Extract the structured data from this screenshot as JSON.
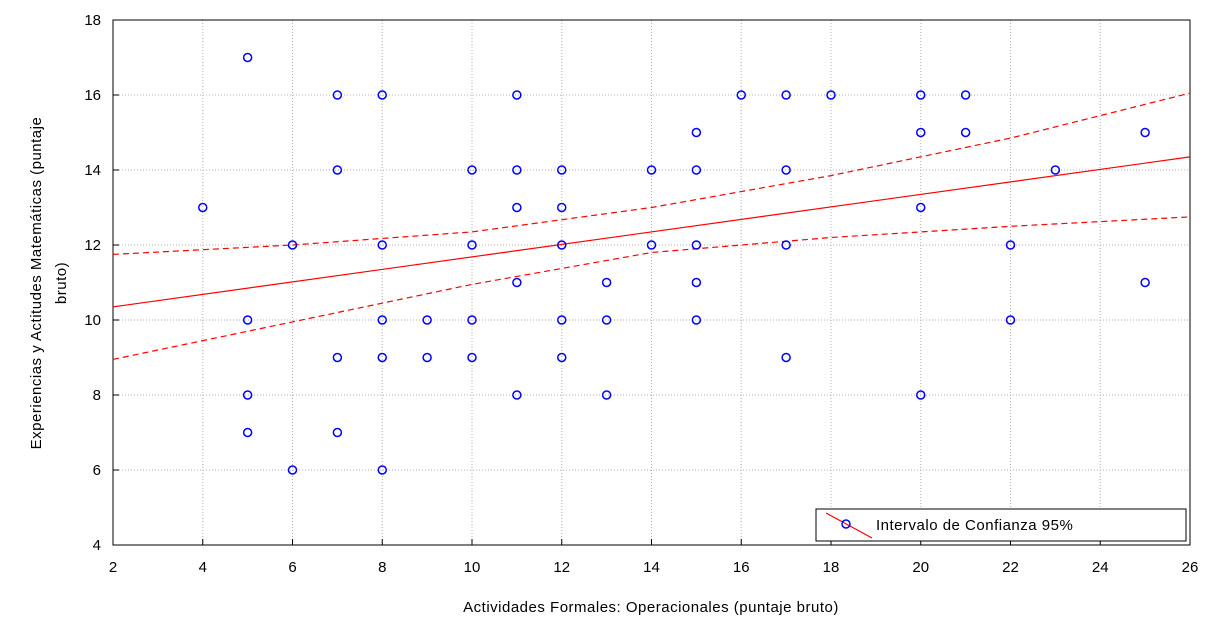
{
  "chart_data": {
    "type": "scatter",
    "xlabel": "Actividades Formales: Operacionales (puntaje bruto)",
    "ylabel_lines": [
      "Experiencias y Actitudes Matemáticas (puntaje",
      "bruto)"
    ],
    "xlim": [
      2,
      26
    ],
    "ylim": [
      4,
      18
    ],
    "xticks": [
      2,
      4,
      6,
      8,
      10,
      12,
      14,
      16,
      18,
      20,
      22,
      24,
      26
    ],
    "yticks": [
      4,
      6,
      8,
      10,
      12,
      14,
      16,
      18
    ],
    "grid": true,
    "legend": {
      "position": "bottom-right",
      "label": "Intervalo de Confianza 95%"
    },
    "colors": {
      "points": "#0000ff",
      "fit": "#ff0000",
      "grid": "#b0b0b0"
    },
    "points": [
      [
        4,
        13
      ],
      [
        5,
        17
      ],
      [
        5,
        10
      ],
      [
        5,
        8
      ],
      [
        5,
        7
      ],
      [
        6,
        12
      ],
      [
        6,
        6
      ],
      [
        7,
        16
      ],
      [
        7,
        14
      ],
      [
        7,
        9
      ],
      [
        7,
        7
      ],
      [
        8,
        16
      ],
      [
        8,
        12
      ],
      [
        8,
        10
      ],
      [
        8,
        9
      ],
      [
        8,
        6
      ],
      [
        9,
        10
      ],
      [
        9,
        9
      ],
      [
        10,
        14
      ],
      [
        10,
        12
      ],
      [
        10,
        10
      ],
      [
        10,
        9
      ],
      [
        11,
        16
      ],
      [
        11,
        14
      ],
      [
        11,
        13
      ],
      [
        11,
        11
      ],
      [
        11,
        8
      ],
      [
        12,
        14
      ],
      [
        12,
        13
      ],
      [
        12,
        12
      ],
      [
        12,
        10
      ],
      [
        12,
        9
      ],
      [
        13,
        11
      ],
      [
        13,
        10
      ],
      [
        13,
        8
      ],
      [
        14,
        14
      ],
      [
        14,
        12
      ],
      [
        15,
        15
      ],
      [
        15,
        14
      ],
      [
        15,
        12
      ],
      [
        15,
        11
      ],
      [
        15,
        10
      ],
      [
        16,
        16
      ],
      [
        17,
        16
      ],
      [
        17,
        14
      ],
      [
        17,
        12
      ],
      [
        17,
        9
      ],
      [
        18,
        16
      ],
      [
        20,
        16
      ],
      [
        20,
        15
      ],
      [
        20,
        13
      ],
      [
        20,
        8
      ],
      [
        21,
        16
      ],
      [
        21,
        15
      ],
      [
        22,
        12
      ],
      [
        22,
        10
      ],
      [
        23,
        14
      ],
      [
        25,
        15
      ],
      [
        25,
        11
      ]
    ],
    "fit_line": [
      [
        2,
        10.35
      ],
      [
        26,
        14.35
      ]
    ],
    "ci_upper": [
      [
        2,
        11.75
      ],
      [
        6,
        12.0
      ],
      [
        10,
        12.35
      ],
      [
        14,
        13.0
      ],
      [
        18,
        13.85
      ],
      [
        22,
        14.85
      ],
      [
        26,
        16.05
      ]
    ],
    "ci_lower": [
      [
        2,
        8.95
      ],
      [
        6,
        9.95
      ],
      [
        10,
        10.95
      ],
      [
        14,
        11.8
      ],
      [
        18,
        12.2
      ],
      [
        22,
        12.5
      ],
      [
        26,
        12.75
      ]
    ]
  }
}
